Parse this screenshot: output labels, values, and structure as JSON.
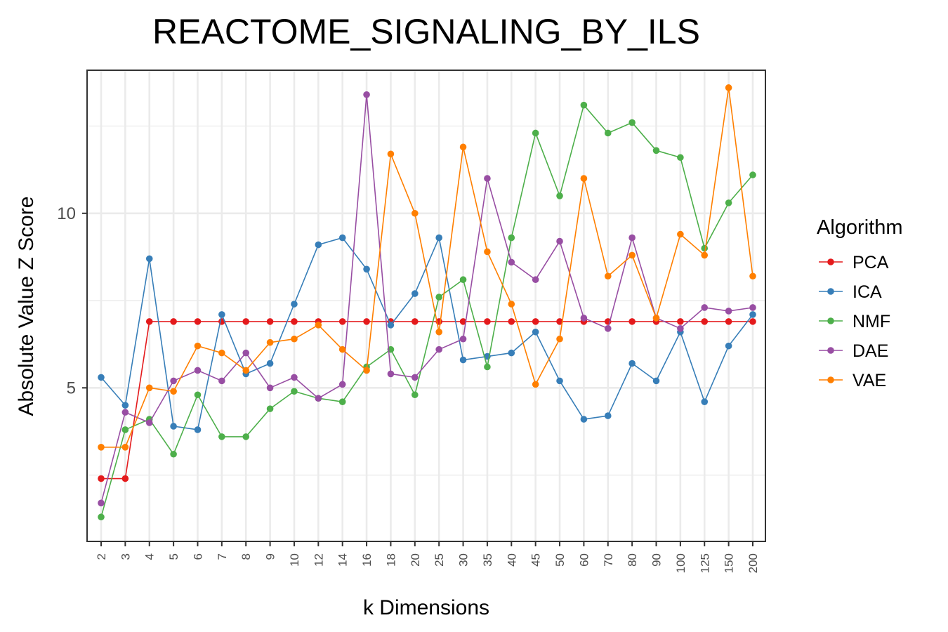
{
  "chart_data": {
    "type": "line",
    "title": "REACTOME_SIGNALING_BY_ILS",
    "xlabel": "k Dimensions",
    "ylabel": "Absolute Value Z Score",
    "categories": [
      "2",
      "3",
      "4",
      "5",
      "6",
      "7",
      "8",
      "9",
      "10",
      "12",
      "14",
      "16",
      "18",
      "20",
      "25",
      "30",
      "35",
      "40",
      "45",
      "50",
      "60",
      "70",
      "80",
      "90",
      "100",
      "125",
      "150",
      "200"
    ],
    "yticks": [
      5,
      10
    ],
    "ylim": [
      0.6,
      14.1
    ],
    "grid": true,
    "legend": {
      "title": "Algorithm",
      "position": "right"
    },
    "series": [
      {
        "name": "PCA",
        "color": "#e41a1c",
        "values": [
          2.4,
          2.4,
          6.9,
          6.9,
          6.9,
          6.9,
          6.9,
          6.9,
          6.9,
          6.9,
          6.9,
          6.9,
          6.9,
          6.9,
          6.9,
          6.9,
          6.9,
          6.9,
          6.9,
          6.9,
          6.9,
          6.9,
          6.9,
          6.9,
          6.9,
          6.9,
          6.9,
          6.9
        ]
      },
      {
        "name": "ICA",
        "color": "#377eb8",
        "values": [
          5.3,
          4.5,
          8.7,
          3.9,
          3.8,
          7.1,
          5.4,
          5.7,
          7.4,
          9.1,
          9.3,
          8.4,
          6.8,
          7.7,
          9.3,
          5.8,
          5.9,
          6.0,
          6.6,
          5.2,
          4.1,
          4.2,
          5.7,
          5.2,
          6.6,
          4.6,
          6.2,
          7.1
        ]
      },
      {
        "name": "NMF",
        "color": "#4daf4a",
        "values": [
          1.3,
          3.8,
          4.1,
          3.1,
          4.8,
          3.6,
          3.6,
          4.4,
          4.9,
          4.7,
          4.6,
          5.6,
          6.1,
          4.8,
          7.6,
          8.1,
          5.6,
          9.3,
          12.3,
          10.5,
          13.1,
          12.3,
          12.6,
          11.8,
          11.6,
          9.0,
          10.3,
          11.1
        ]
      },
      {
        "name": "DAE",
        "color": "#984ea3",
        "values": [
          1.7,
          4.3,
          4.0,
          5.2,
          5.5,
          5.2,
          6.0,
          5.0,
          5.3,
          4.7,
          5.1,
          13.4,
          5.4,
          5.3,
          6.1,
          6.4,
          11.0,
          8.6,
          8.1,
          9.2,
          7.0,
          6.7,
          9.3,
          7.0,
          6.7,
          7.3,
          7.2,
          7.3
        ]
      },
      {
        "name": "VAE",
        "color": "#ff7f00",
        "values": [
          3.3,
          3.3,
          5.0,
          4.9,
          6.2,
          6.0,
          5.5,
          6.3,
          6.4,
          6.8,
          6.1,
          5.5,
          11.7,
          10.0,
          6.6,
          11.9,
          8.9,
          7.4,
          5.1,
          6.4,
          11.0,
          8.2,
          8.8,
          7.0,
          9.4,
          8.8,
          13.6,
          8.2
        ]
      }
    ]
  }
}
